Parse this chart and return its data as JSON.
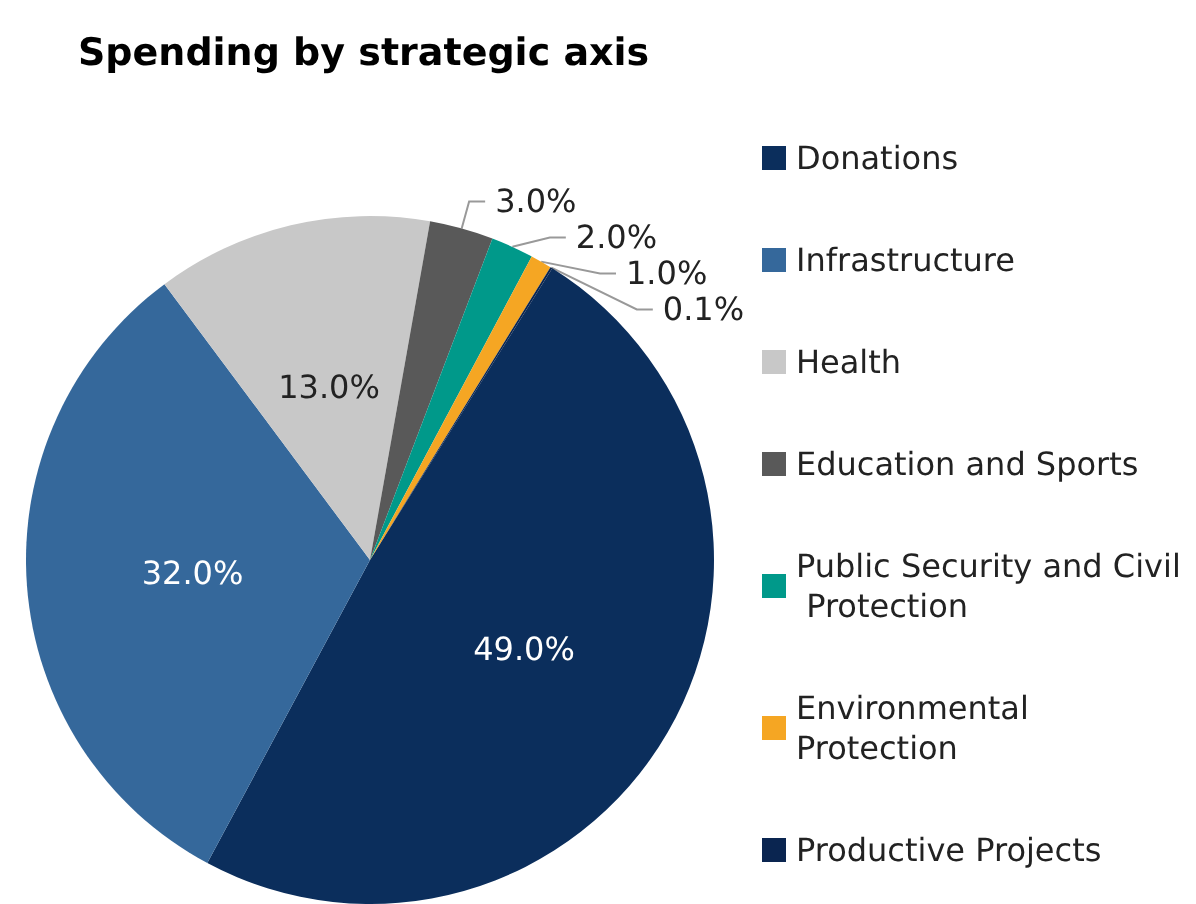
{
  "chart_data": {
    "type": "pie",
    "title": "Spending by strategic axis",
    "categories": [
      "Donations",
      "Infrastructure",
      "Health",
      "Education and Sports",
      "Public Security and Civil Protection",
      "Environmental Protection",
      "Productive Projects"
    ],
    "values": [
      49,
      32,
      13,
      3,
      2,
      1,
      0.1
    ],
    "value_labels": [
      "49.0%",
      "32.0%",
      "13.0%",
      "3.0%",
      "2.0%",
      "1.0%",
      "0.1%"
    ],
    "colors": [
      "#0b2e5c",
      "#35689b",
      "#c8c8c8",
      "#595959",
      "#00998a",
      "#f5a623",
      "#0a2550"
    ],
    "legend": "right"
  }
}
